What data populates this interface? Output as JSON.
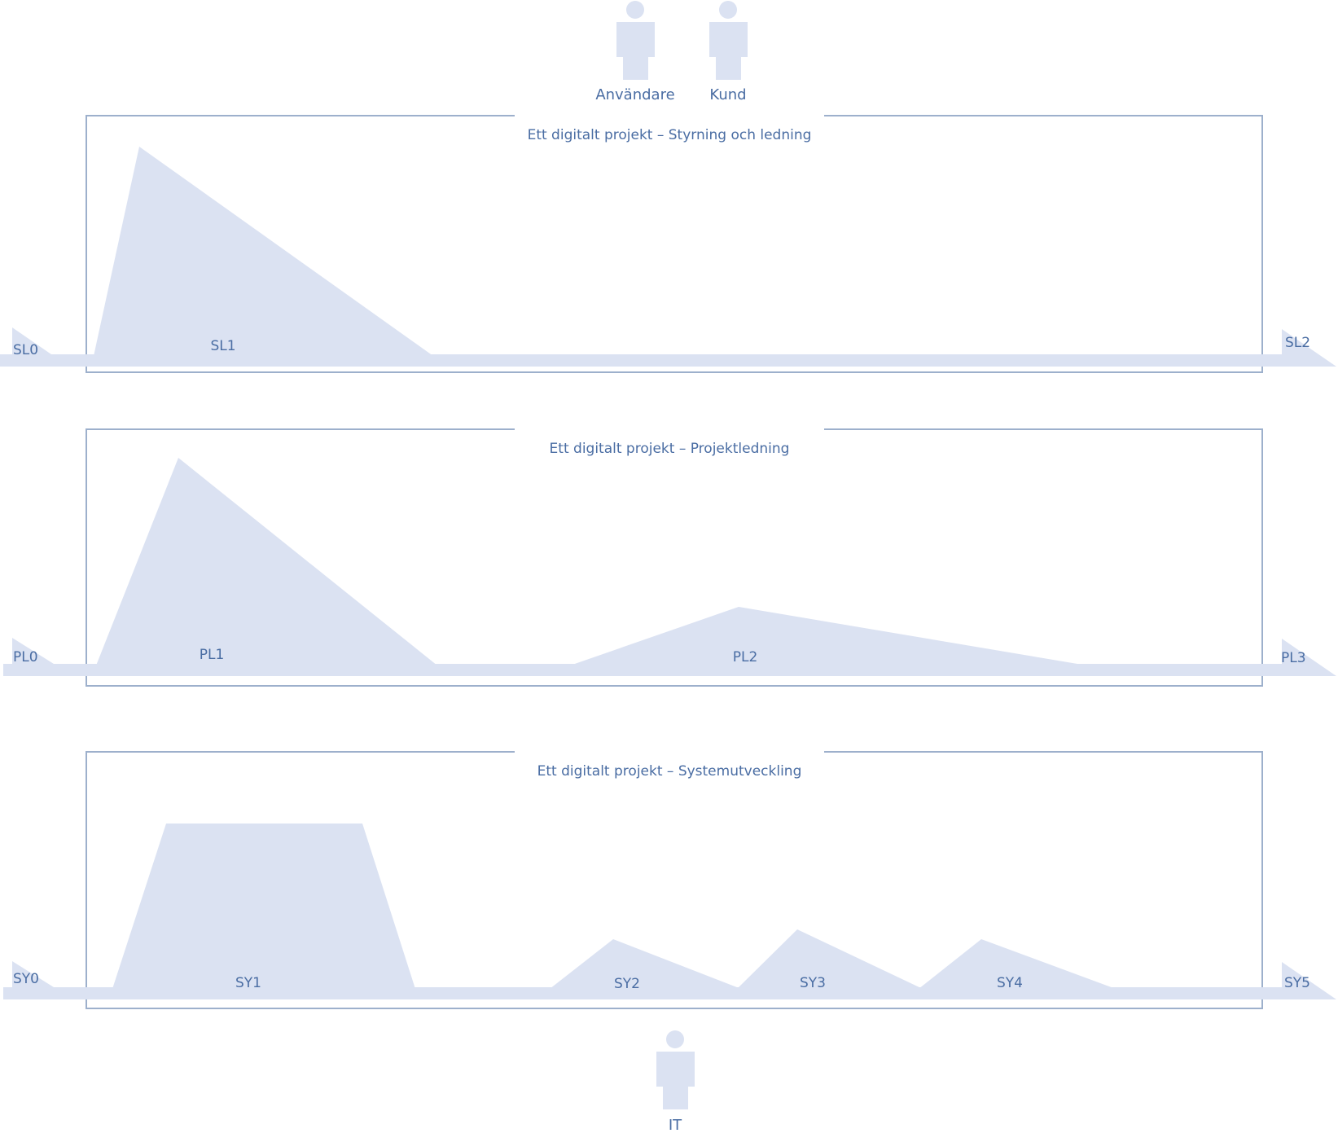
{
  "colors": {
    "shape_fill": "#dbe2f2",
    "frame_stroke": "#9db0cc",
    "text": "#4a6da3",
    "background": "#ffffff"
  },
  "actors": {
    "anvandare": {
      "label": "Användare",
      "icon": "person-icon"
    },
    "kund": {
      "label": "Kund",
      "icon": "person-icon"
    },
    "it": {
      "label": "IT",
      "icon": "person-icon"
    }
  },
  "lanes": [
    {
      "title": "Ett digitalt projekt – Styrning och ledning",
      "start_label": "SL0",
      "end_label": "SL2",
      "phases": [
        {
          "label": "SL1"
        }
      ]
    },
    {
      "title": "Ett digitalt projekt – Projektledning",
      "start_label": "PL0",
      "end_label": "PL3",
      "phases": [
        {
          "label": "PL1"
        },
        {
          "label": "PL2"
        }
      ]
    },
    {
      "title": "Ett digitalt projekt – Systemutveckling",
      "start_label": "SY0",
      "end_label": "SY5",
      "phases": [
        {
          "label": "SY1"
        },
        {
          "label": "SY2"
        },
        {
          "label": "SY3"
        },
        {
          "label": "SY4"
        }
      ]
    }
  ]
}
